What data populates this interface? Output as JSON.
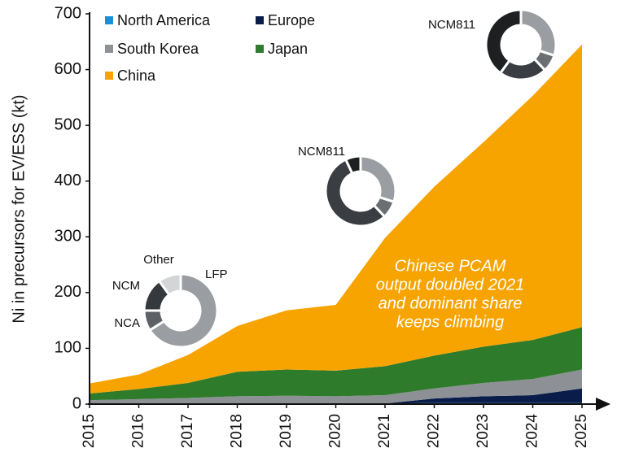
{
  "chart_data": [
    {
      "type": "stacked_area",
      "ylabel": "Ni in precursors for EV/ESS (kt)",
      "categories": [
        "2015",
        "2016",
        "2017",
        "2018",
        "2019",
        "2020",
        "2021",
        "2022",
        "2023",
        "2024",
        "2025"
      ],
      "series": [
        {
          "name": "North America",
          "color": "#1b8fd2",
          "values": [
            1,
            1,
            1,
            1,
            1,
            1,
            1,
            2,
            2,
            2,
            2
          ]
        },
        {
          "name": "Europe",
          "color": "#0a1d4a",
          "values": [
            0,
            0,
            0,
            0,
            0,
            0,
            0,
            8,
            12,
            14,
            26
          ]
        },
        {
          "name": "South Korea",
          "color": "#8d9196",
          "values": [
            6,
            8,
            10,
            13,
            14,
            13,
            15,
            18,
            24,
            29,
            34
          ]
        },
        {
          "name": "Japan",
          "color": "#2f7b2c",
          "values": [
            12,
            18,
            27,
            44,
            47,
            46,
            52,
            59,
            65,
            70,
            76
          ]
        },
        {
          "name": "China",
          "color": "#f7a400",
          "values": [
            18,
            26,
            50,
            82,
            106,
            118,
            230,
            303,
            367,
            438,
            507
          ]
        }
      ],
      "ylim": [
        0,
        700
      ],
      "yticks": [
        0,
        100,
        200,
        300,
        400,
        500,
        600,
        700
      ],
      "annotation": [
        "Chinese PCAM",
        "output doubled 2021",
        "and dominant share",
        "keeps climbing"
      ]
    },
    {
      "type": "donut",
      "labels": [
        "LFP",
        "NCA",
        "NCM",
        "Other"
      ],
      "values": [
        66,
        9,
        15,
        10
      ],
      "colors": [
        "#9a9ea2",
        "#5d6166",
        "#35393d",
        "#d3d5d7"
      ]
    },
    {
      "type": "donut",
      "title": "NCM811",
      "values": [
        30,
        8,
        55,
        7
      ],
      "colors": [
        "#9a9ea2",
        "#6b6f73",
        "#3a3e42",
        "#1e1f21"
      ]
    },
    {
      "type": "donut",
      "title": "NCM811",
      "values": [
        30,
        8,
        22,
        40
      ],
      "colors": [
        "#9a9ea2",
        "#6b6f73",
        "#3a3e42",
        "#1e1f21"
      ]
    }
  ]
}
